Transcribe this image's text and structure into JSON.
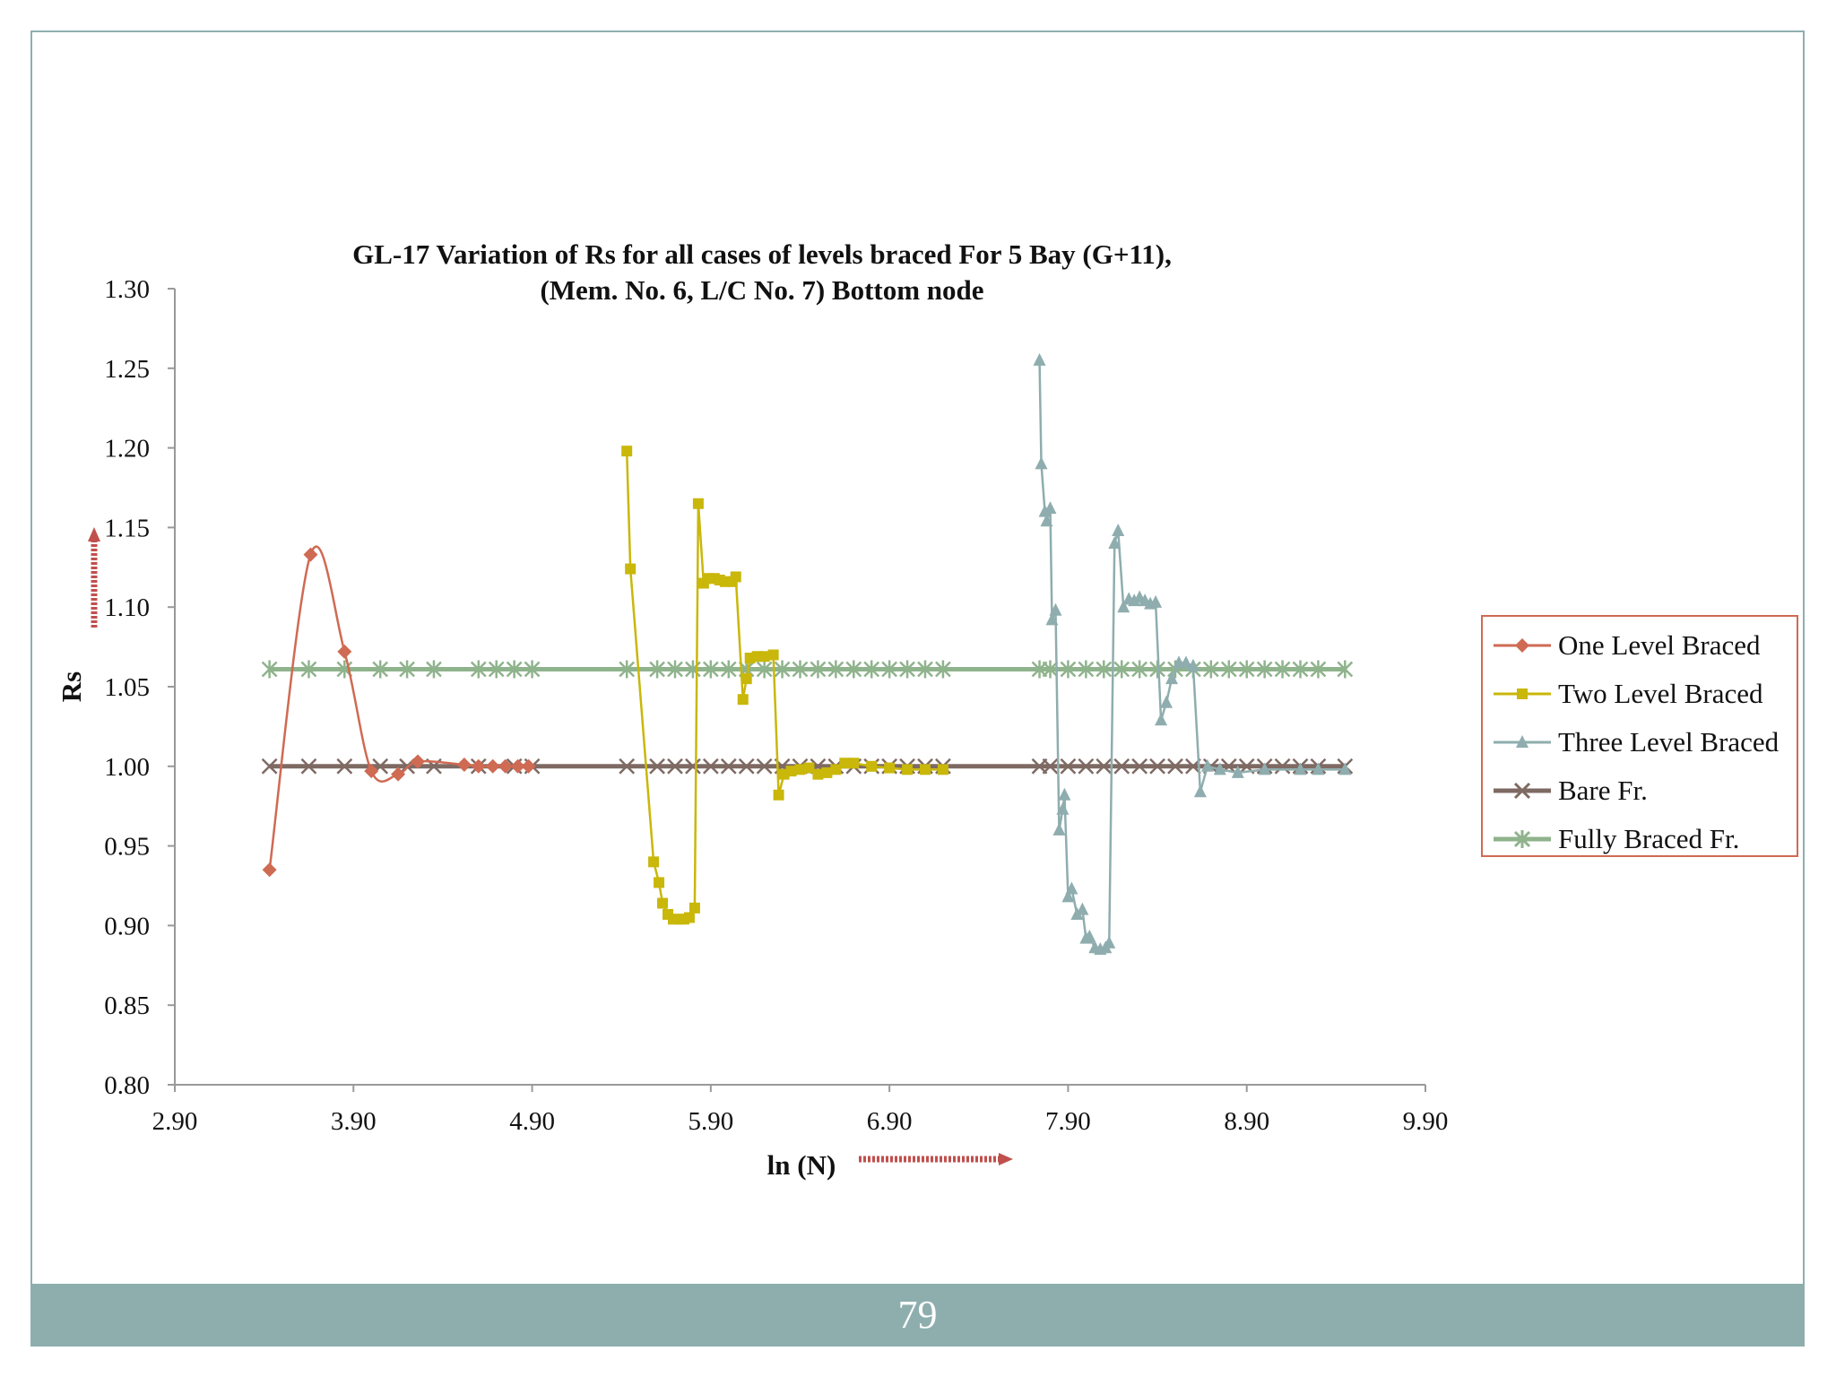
{
  "page": {
    "number": "79"
  },
  "colors": {
    "frame": "#8eaeae",
    "one": "#cf6a53",
    "two": "#c9b70a",
    "three": "#8fadae",
    "bare": "#7e6a63",
    "fully": "#8fb38c",
    "arrow": "#c0504d"
  },
  "chart_data": {
    "type": "line",
    "title_line1": "GL-17 Variation of Rs for all cases of levels braced For 5 Bay (G+11),",
    "title_line2": "(Mem. No. 6, L/C No. 7) Bottom node",
    "xlabel": "ln (N)",
    "ylabel": "Rs",
    "xlim": [
      2.9,
      9.9
    ],
    "ylim": [
      0.8,
      1.3
    ],
    "xticks": [
      "2.90",
      "3.90",
      "4.90",
      "5.90",
      "6.90",
      "7.90",
      "8.90",
      "9.90"
    ],
    "yticks": [
      "0.80",
      "0.85",
      "0.90",
      "0.95",
      "1.00",
      "1.05",
      "1.10",
      "1.15",
      "1.20",
      "1.25",
      "1.30"
    ],
    "legend": [
      "One Level Braced",
      "Two Level Braced",
      "Three Level Braced",
      "Bare Fr.",
      "Fully Braced Fr."
    ],
    "series": [
      {
        "name": "One Level Braced",
        "marker": "diamond",
        "smooth": true,
        "x": [
          3.43,
          3.66,
          3.85,
          4.0,
          4.15,
          4.26,
          4.52,
          4.6,
          4.68,
          4.75,
          4.82,
          4.88
        ],
        "y": [
          0.935,
          1.133,
          1.072,
          0.997,
          0.995,
          1.003,
          1.001,
          1.0,
          1.0,
          1.0,
          1.0,
          1.0
        ]
      },
      {
        "name": "Two Level Braced",
        "marker": "square",
        "smooth": false,
        "x": [
          5.43,
          5.45,
          5.58,
          5.61,
          5.63,
          5.66,
          5.69,
          5.72,
          5.75,
          5.78,
          5.81,
          5.83,
          5.86,
          5.89,
          5.92,
          5.95,
          5.98,
          6.02,
          6.04,
          6.08,
          6.1,
          6.12,
          6.16,
          6.2,
          6.25,
          6.28,
          6.31,
          6.35,
          6.4,
          6.45,
          6.5,
          6.55,
          6.6,
          6.65,
          6.7,
          6.8,
          6.9,
          7.0,
          7.1,
          7.2
        ],
        "y": [
          1.198,
          1.124,
          0.94,
          0.927,
          0.914,
          0.907,
          0.904,
          0.904,
          0.904,
          0.905,
          0.911,
          1.165,
          1.115,
          1.118,
          1.118,
          1.117,
          1.116,
          1.116,
          1.119,
          1.042,
          1.055,
          1.068,
          1.069,
          1.069,
          1.07,
          0.982,
          0.995,
          0.997,
          0.998,
          0.999,
          0.995,
          0.996,
          0.998,
          1.002,
          1.002,
          1.0,
          0.999,
          0.998,
          0.998,
          0.998
        ]
      },
      {
        "name": "Three Level Braced",
        "marker": "triangle",
        "smooth": false,
        "x": [
          7.74,
          7.75,
          7.77,
          7.78,
          7.8,
          7.81,
          7.83,
          7.85,
          7.87,
          7.88,
          7.9,
          7.92,
          7.95,
          7.98,
          8.0,
          8.02,
          8.05,
          8.08,
          8.11,
          8.13,
          8.16,
          8.18,
          8.21,
          8.24,
          8.27,
          8.3,
          8.33,
          8.36,
          8.39,
          8.42,
          8.45,
          8.48,
          8.52,
          8.56,
          8.6,
          8.64,
          8.68,
          8.75,
          8.85,
          9.0,
          9.2,
          9.3,
          9.45
        ],
        "y": [
          1.255,
          1.19,
          1.16,
          1.154,
          1.162,
          1.092,
          1.098,
          0.96,
          0.973,
          0.982,
          0.918,
          0.923,
          0.907,
          0.91,
          0.892,
          0.893,
          0.886,
          0.885,
          0.886,
          0.889,
          1.14,
          1.148,
          1.1,
          1.105,
          1.104,
          1.106,
          1.104,
          1.102,
          1.103,
          1.029,
          1.04,
          1.055,
          1.065,
          1.065,
          1.063,
          0.984,
          1.0,
          0.998,
          0.996,
          0.998,
          0.998,
          0.998,
          0.998
        ]
      },
      {
        "name": "Bare Fr.",
        "marker": "x",
        "smooth": false,
        "x": [
          3.43,
          3.65,
          3.85,
          4.05,
          4.2,
          4.35,
          4.6,
          4.8,
          4.9,
          5.43,
          5.6,
          5.7,
          5.8,
          5.9,
          6.0,
          6.1,
          6.2,
          6.3,
          6.4,
          6.5,
          6.6,
          6.7,
          6.8,
          6.9,
          7.0,
          7.1,
          7.2,
          7.74,
          7.8,
          7.9,
          8.0,
          8.1,
          8.2,
          8.3,
          8.4,
          8.5,
          8.6,
          8.7,
          8.8,
          8.9,
          9.0,
          9.1,
          9.2,
          9.3,
          9.45
        ],
        "y": [
          1,
          1,
          1,
          1,
          1,
          1,
          1,
          1,
          1,
          1,
          1,
          1,
          1,
          1,
          1,
          1,
          1,
          1,
          1,
          1,
          1,
          1,
          1,
          1,
          1,
          1,
          1,
          1,
          1,
          1,
          1,
          1,
          1,
          1,
          1,
          1,
          1,
          1,
          1,
          1,
          1,
          1,
          1,
          1,
          1
        ]
      },
      {
        "name": "Fully Braced Fr.",
        "marker": "star",
        "smooth": false,
        "x": [
          3.43,
          3.65,
          3.85,
          4.05,
          4.2,
          4.35,
          4.6,
          4.7,
          4.8,
          4.9,
          5.43,
          5.6,
          5.7,
          5.8,
          5.9,
          6.0,
          6.1,
          6.2,
          6.3,
          6.4,
          6.5,
          6.6,
          6.7,
          6.8,
          6.9,
          7.0,
          7.1,
          7.2,
          7.74,
          7.8,
          7.9,
          8.0,
          8.1,
          8.2,
          8.3,
          8.4,
          8.5,
          8.6,
          8.7,
          8.8,
          8.9,
          9.0,
          9.1,
          9.2,
          9.3,
          9.45
        ],
        "y": [
          1.061,
          1.061,
          1.061,
          1.061,
          1.061,
          1.061,
          1.061,
          1.061,
          1.061,
          1.061,
          1.061,
          1.061,
          1.061,
          1.061,
          1.061,
          1.061,
          1.061,
          1.061,
          1.061,
          1.061,
          1.061,
          1.061,
          1.061,
          1.061,
          1.061,
          1.061,
          1.061,
          1.061,
          1.061,
          1.061,
          1.061,
          1.061,
          1.061,
          1.061,
          1.061,
          1.061,
          1.061,
          1.061,
          1.061,
          1.061,
          1.061,
          1.061,
          1.061,
          1.061,
          1.061,
          1.061
        ]
      }
    ]
  }
}
